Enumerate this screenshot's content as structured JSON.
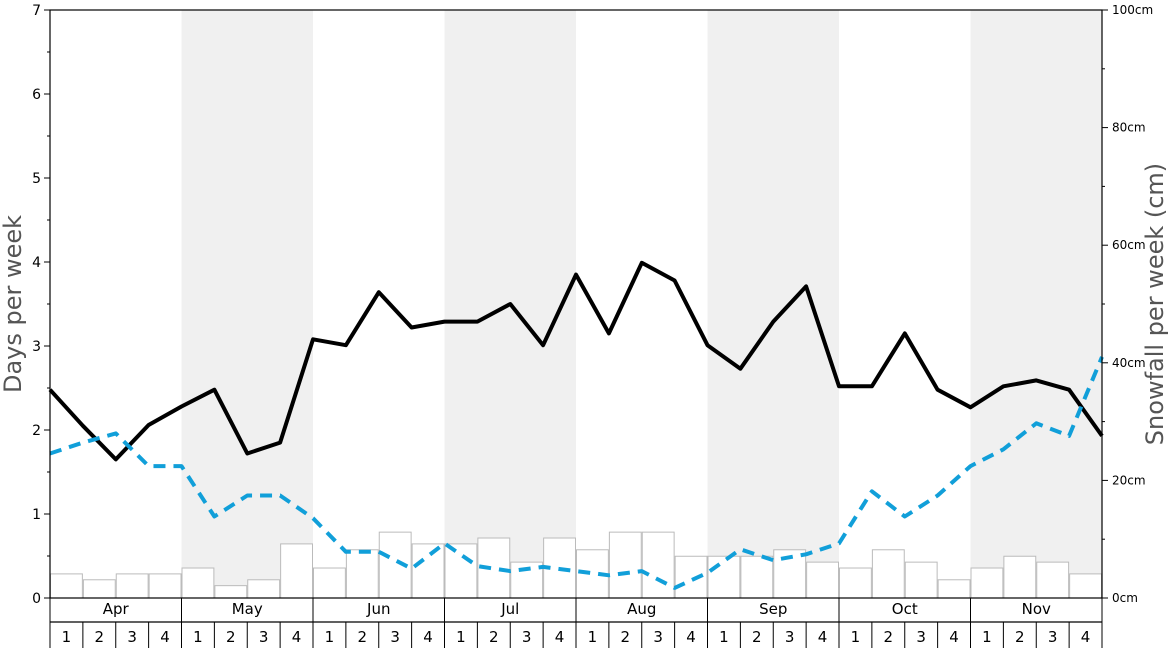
{
  "chart_data": {
    "type": "line",
    "left_axis": {
      "label": "Days per week",
      "min": 0,
      "max": 7,
      "ticks": [
        "0",
        "1",
        "2",
        "3",
        "4",
        "5",
        "6",
        "7"
      ]
    },
    "right_axis": {
      "label": "Snowfall per week (cm)",
      "min": 0,
      "max": 100,
      "ticks": [
        "0cm",
        "20cm",
        "40cm",
        "60cm",
        "80cm",
        "100cm"
      ]
    },
    "months": [
      "Apr",
      "May",
      "Jun",
      "Jul",
      "Aug",
      "Sep",
      "Oct",
      "Nov"
    ],
    "weeks": [
      "1",
      "2",
      "3",
      "4"
    ],
    "series": [
      {
        "type": "line",
        "axis": "left",
        "style": "solid",
        "color": "#000000",
        "values": [
          2.48,
          2.05,
          1.65,
          2.06,
          2.28,
          2.48,
          1.72,
          1.85,
          3.08,
          3.01,
          3.64,
          3.22,
          3.29,
          3.29,
          3.5,
          3.01,
          3.85,
          3.15,
          3.99,
          3.78,
          3.01,
          2.73,
          3.29,
          3.71,
          2.52,
          2.52,
          3.15,
          2.48,
          2.27,
          2.52,
          2.59,
          2.48,
          1.93
        ]
      },
      {
        "type": "line",
        "axis": "left",
        "style": "dashed",
        "color": "#119fd9",
        "values": [
          1.72,
          1.85,
          1.96,
          1.57,
          1.57,
          0.97,
          1.22,
          1.22,
          0.95,
          0.55,
          0.55,
          0.35,
          0.65,
          0.38,
          0.32,
          0.37,
          0.32,
          0.27,
          0.32,
          0.12,
          0.3,
          0.58,
          0.45,
          0.52,
          0.65,
          1.27,
          0.97,
          1.22,
          1.57,
          1.77,
          2.08,
          1.93,
          2.87
        ]
      },
      {
        "type": "bar",
        "axis": "right",
        "color": "#ffffff",
        "border": "#bbbbbb",
        "values": [
          4.1,
          3.1,
          4.1,
          4.1,
          5.1,
          2.1,
          3.1,
          9.2,
          5.1,
          8.2,
          11.2,
          9.2,
          9.2,
          10.2,
          6.1,
          10.2,
          8.2,
          11.2,
          11.2,
          7.1,
          7.1,
          7.1,
          8.2,
          6.1,
          5.1,
          8.2,
          6.1,
          3.1,
          5.1,
          7.1,
          6.1,
          4.1
        ]
      }
    ],
    "grid": false,
    "shaded_months": [
      "May",
      "Jul",
      "Sep",
      "Nov"
    ],
    "shade_color": "#f0f0f0"
  }
}
